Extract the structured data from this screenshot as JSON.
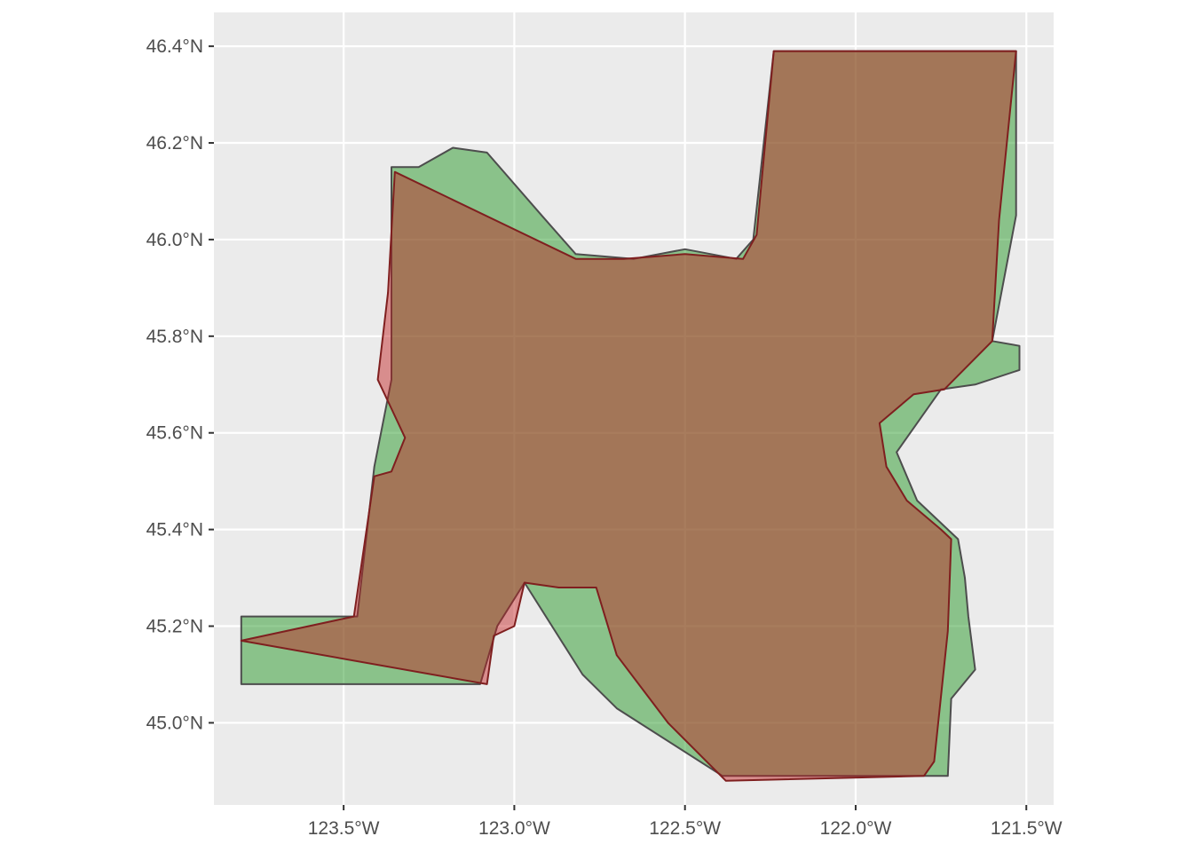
{
  "map": {
    "x_axis": {
      "unit": "longitude",
      "range": [
        -123.88,
        -121.42
      ],
      "ticks": [
        {
          "value": -123.5,
          "label": "123.5°W"
        },
        {
          "value": -123.0,
          "label": "123.0°W"
        },
        {
          "value": -122.5,
          "label": "122.5°W"
        },
        {
          "value": -122.0,
          "label": "122.0°W"
        },
        {
          "value": -121.5,
          "label": "121.5°W"
        }
      ]
    },
    "y_axis": {
      "unit": "latitude",
      "range": [
        44.83,
        46.47
      ],
      "ticks": [
        {
          "value": 45.0,
          "label": "45.0°N"
        },
        {
          "value": 45.2,
          "label": "45.2°N"
        },
        {
          "value": 45.4,
          "label": "45.4°N"
        },
        {
          "value": 45.6,
          "label": "45.6°N"
        },
        {
          "value": 45.8,
          "label": "45.8°N"
        },
        {
          "value": 46.0,
          "label": "46.0°N"
        },
        {
          "value": 46.2,
          "label": "46.2°N"
        },
        {
          "value": 46.4,
          "label": "46.4°N"
        }
      ]
    },
    "grid": true,
    "panel_background": "#ebebeb",
    "grid_color": "#ffffff",
    "layers": [
      {
        "id": "green-layer",
        "fill": "#2a9a2a",
        "fill_opacity": 0.5,
        "stroke": "#4d4d4d",
        "polygons": [
          [
            [
              -123.8,
              45.22
            ],
            [
              -123.46,
              45.22
            ],
            [
              -123.41,
              45.53
            ],
            [
              -123.36,
              45.71
            ],
            [
              -123.36,
              46.15
            ],
            [
              -123.28,
              46.15
            ],
            [
              -123.18,
              46.19
            ],
            [
              -123.08,
              46.18
            ],
            [
              -122.92,
              46.05
            ],
            [
              -122.82,
              45.97
            ],
            [
              -122.65,
              45.96
            ],
            [
              -122.5,
              45.98
            ],
            [
              -122.35,
              45.96
            ],
            [
              -122.3,
              46.0
            ],
            [
              -122.24,
              46.39
            ],
            [
              -121.53,
              46.39
            ],
            [
              -121.53,
              46.05
            ],
            [
              -121.6,
              45.79
            ],
            [
              -121.52,
              45.78
            ],
            [
              -121.52,
              45.73
            ],
            [
              -121.65,
              45.7
            ],
            [
              -121.75,
              45.69
            ],
            [
              -121.88,
              45.56
            ],
            [
              -121.82,
              45.46
            ],
            [
              -121.7,
              45.38
            ],
            [
              -121.68,
              45.3
            ],
            [
              -121.67,
              45.22
            ],
            [
              -121.65,
              45.11
            ],
            [
              -121.72,
              45.05
            ],
            [
              -121.73,
              44.89
            ],
            [
              -122.39,
              44.89
            ],
            [
              -122.7,
              45.03
            ],
            [
              -122.8,
              45.1
            ],
            [
              -122.97,
              45.29
            ],
            [
              -123.05,
              45.2
            ],
            [
              -123.1,
              45.08
            ],
            [
              -123.5,
              45.08
            ],
            [
              -123.8,
              45.08
            ]
          ]
        ]
      },
      {
        "id": "red-layer",
        "fill": "#c21a1a",
        "fill_opacity": 0.45,
        "stroke": "#7f1f1f",
        "polygons": [
          [
            [
              -123.35,
              46.14
            ],
            [
              -122.82,
              45.96
            ],
            [
              -122.68,
              45.96
            ],
            [
              -122.5,
              45.97
            ],
            [
              -122.33,
              45.96
            ],
            [
              -122.29,
              46.01
            ],
            [
              -122.24,
              46.39
            ],
            [
              -121.53,
              46.39
            ],
            [
              -121.58,
              46.04
            ],
            [
              -121.6,
              45.79
            ],
            [
              -121.74,
              45.69
            ],
            [
              -121.83,
              45.68
            ],
            [
              -121.93,
              45.62
            ],
            [
              -121.91,
              45.53
            ],
            [
              -121.85,
              45.46
            ],
            [
              -121.75,
              45.4
            ],
            [
              -121.72,
              45.38
            ],
            [
              -121.73,
              45.19
            ],
            [
              -121.77,
              44.92
            ],
            [
              -121.8,
              44.89
            ],
            [
              -122.38,
              44.88
            ],
            [
              -122.55,
              45.0
            ],
            [
              -122.7,
              45.14
            ],
            [
              -122.76,
              45.28
            ],
            [
              -122.87,
              45.28
            ],
            [
              -122.97,
              45.29
            ],
            [
              -123.0,
              45.2
            ],
            [
              -123.06,
              45.18
            ],
            [
              -123.08,
              45.08
            ],
            [
              -123.8,
              45.17
            ],
            [
              -123.47,
              45.22
            ],
            [
              -123.41,
              45.51
            ],
            [
              -123.36,
              45.52
            ],
            [
              -123.32,
              45.59
            ],
            [
              -123.36,
              45.65
            ],
            [
              -123.4,
              45.71
            ],
            [
              -123.37,
              45.89
            ]
          ]
        ]
      }
    ]
  }
}
